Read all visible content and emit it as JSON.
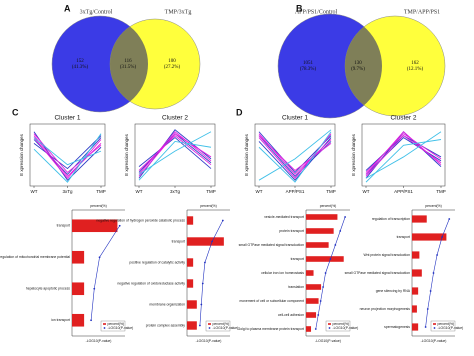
{
  "panel_labels": [
    "A",
    "B",
    "C",
    "D"
  ],
  "chart_data": [
    {
      "type": "venn",
      "sets": [
        {
          "name": "3xTg/Control",
          "color": "#3b3be6"
        },
        {
          "name": "TMP/3xTg",
          "color": "#ffff3c"
        }
      ],
      "values": [
        152,
        116,
        100
      ],
      "percent_labels": [
        "(41.3%)",
        "(31.5%)",
        "(27.2%)"
      ]
    },
    {
      "type": "venn",
      "sets": [
        {
          "name": "APP/PS1/Control",
          "color": "#3b3be6"
        },
        {
          "name": "TMP/APP/PS1",
          "color": "#ffff3c"
        }
      ],
      "values": [
        1051,
        130,
        162
      ],
      "percent_labels": [
        "(78.3%)",
        "(9.7%)",
        "(12.1%)"
      ]
    },
    {
      "type": "line",
      "title": "Cluster 1",
      "ylabel": "E xpression changes",
      "categories": [
        "WT",
        "3xTg",
        "TMP"
      ],
      "ylim": [
        -1.6,
        1.6
      ],
      "series": [
        {
          "color": "#3040c8",
          "values": [
            0.8,
            -1.0,
            0.9
          ]
        },
        {
          "color": "#3040c8",
          "values": [
            1.2,
            -1.3,
            0.4
          ]
        },
        {
          "color": "#3040c8",
          "values": [
            0.6,
            -0.7,
            1.0
          ]
        },
        {
          "color": "#e020e0",
          "values": [
            1.0,
            -1.1,
            0.6
          ]
        },
        {
          "color": "#e020e0",
          "values": [
            0.9,
            -1.2,
            0.8
          ]
        },
        {
          "color": "#e020e0",
          "values": [
            1.1,
            -0.9,
            0.5
          ]
        },
        {
          "color": "#40c0e8",
          "values": [
            0.3,
            -1.4,
            1.1
          ]
        },
        {
          "color": "#40c0e8",
          "values": [
            0.9,
            -0.5,
            0.2
          ]
        }
      ]
    },
    {
      "type": "line",
      "title": "Cluster 2",
      "ylabel": "E xpression changes",
      "categories": [
        "WT",
        "3xTg",
        "TMP"
      ],
      "ylim": [
        -1.6,
        1.6
      ],
      "series": [
        {
          "color": "#3040c8",
          "values": [
            -0.9,
            1.1,
            -0.4
          ]
        },
        {
          "color": "#3040c8",
          "values": [
            -1.2,
            1.3,
            -0.2
          ]
        },
        {
          "color": "#3040c8",
          "values": [
            -0.6,
            0.9,
            -0.7
          ]
        },
        {
          "color": "#e020e0",
          "values": [
            -1.0,
            1.2,
            -0.3
          ]
        },
        {
          "color": "#e020e0",
          "values": [
            -0.8,
            1.0,
            -0.5
          ]
        },
        {
          "color": "#e020e0",
          "values": [
            -1.1,
            1.1,
            -0.1
          ]
        },
        {
          "color": "#40c0e8",
          "values": [
            -1.0,
            0.2,
            1.2
          ]
        },
        {
          "color": "#40c0e8",
          "values": [
            -1.3,
            0.7,
            0.4
          ]
        }
      ]
    },
    {
      "type": "line",
      "title": "Cluster 1",
      "ylabel": "E xpression changes",
      "categories": [
        "WT",
        "APP/PS1",
        "TMP"
      ],
      "ylim": [
        -1.6,
        1.6
      ],
      "series": [
        {
          "color": "#3040c8",
          "values": [
            1.0,
            -1.1,
            0.7
          ]
        },
        {
          "color": "#3040c8",
          "values": [
            1.2,
            -0.9,
            1.0
          ]
        },
        {
          "color": "#3040c8",
          "values": [
            0.7,
            -1.3,
            0.9
          ]
        },
        {
          "color": "#e020e0",
          "values": [
            1.1,
            -1.0,
            0.8
          ]
        },
        {
          "color": "#e020e0",
          "values": [
            0.9,
            -1.2,
            1.1
          ]
        },
        {
          "color": "#e020e0",
          "values": [
            1.0,
            -0.8,
            0.6
          ]
        },
        {
          "color": "#40c0e8",
          "values": [
            -1.3,
            -0.2,
            1.3
          ]
        },
        {
          "color": "#40c0e8",
          "values": [
            0.4,
            -1.4,
            1.2
          ]
        }
      ]
    },
    {
      "type": "line",
      "title": "Cluster 2",
      "ylabel": "E xpression changes",
      "categories": [
        "WT",
        "APP/PS1",
        "TMP"
      ],
      "ylim": [
        -1.6,
        1.6
      ],
      "series": [
        {
          "color": "#3040c8",
          "values": [
            -1.0,
            0.9,
            -0.3
          ]
        },
        {
          "color": "#3040c8",
          "values": [
            -1.2,
            1.2,
            -0.6
          ]
        },
        {
          "color": "#3040c8",
          "values": [
            -0.8,
            1.0,
            -0.1
          ]
        },
        {
          "color": "#e020e0",
          "values": [
            -1.1,
            1.0,
            -0.4
          ]
        },
        {
          "color": "#e020e0",
          "values": [
            -0.9,
            1.1,
            -0.2
          ]
        },
        {
          "color": "#e020e0",
          "values": [
            -1.0,
            1.2,
            -0.5
          ]
        },
        {
          "color": "#40c0e8",
          "values": [
            -1.2,
            -0.1,
            1.2
          ]
        },
        {
          "color": "#40c0e8",
          "values": [
            -1.4,
            0.5,
            0.8
          ]
        }
      ]
    },
    {
      "type": "go-bar",
      "xlabel": "percent(%)",
      "x2label": "-LOG10(P-value)",
      "xlim": [
        0,
        35
      ],
      "x2lim": [
        0,
        5
      ],
      "categories": [
        "transport",
        "negative regulation of mitochondrial membrane potential",
        "hepatocyte apoptotic process",
        "ion transport"
      ],
      "series": [
        {
          "name": "percent(%)",
          "color": "#e02020",
          "values": [
            30,
            8,
            8,
            8
          ]
        },
        {
          "name": "-LOG10(P-value)",
          "color": "#2030c0",
          "axis": "x2",
          "values": [
            4.5,
            2.6,
            2.1,
            1.8
          ]
        }
      ]
    },
    {
      "type": "go-bar",
      "xlabel": "percent(%)",
      "x2label": "-LOG10(P-value)",
      "xlim": [
        0,
        35
      ],
      "x2lim": [
        0,
        6
      ],
      "categories": [
        "negative regulation of hydrogen peroxide catabolic process",
        "transport",
        "positive regulation of catalytic activity",
        "negative regulation of oxidoreductase activity",
        "membrane organization",
        "protein complex assembly"
      ],
      "series": [
        {
          "name": "percent(%)",
          "color": "#e02020",
          "values": [
            5,
            30,
            5,
            5,
            8,
            8
          ]
        },
        {
          "name": "-LOG10(P-value)",
          "color": "#2030c0",
          "axis": "x2",
          "values": [
            5,
            3.5,
            2.5,
            2.2,
            2.0,
            1.8
          ]
        }
      ]
    },
    {
      "type": "go-bar",
      "xlabel": "percent(%)",
      "x2label": "-LOG10(P-value)",
      "xlim": [
        0,
        35
      ],
      "x2lim": [
        0,
        9
      ],
      "categories": [
        "vesicle-mediated transport",
        "protein transport",
        "small GTPase mediated signal transduction",
        "transport",
        "cellular iron ion homeostasis",
        "translation",
        "movement of cell or subcellular component",
        "cell-cell adhesion",
        "Golgi to plasma membrane protein transport"
      ],
      "series": [
        {
          "name": "percent(%)",
          "color": "#e02020",
          "values": [
            25,
            22,
            18,
            30,
            6,
            12,
            10,
            8,
            4
          ]
        },
        {
          "name": "-LOG10(P-value)",
          "color": "#2030c0",
          "axis": "x2",
          "values": [
            8,
            7,
            6,
            5,
            4,
            3.5,
            3,
            2.5,
            2
          ]
        }
      ]
    },
    {
      "type": "go-bar",
      "xlabel": "percent(%)",
      "x2label": "-LOG10(P-value)",
      "xlim": [
        0,
        35
      ],
      "x2lim": [
        0,
        6
      ],
      "categories": [
        "regulation of transcription",
        "transport",
        "Wnt protein signal transduction",
        "small GTPase mediated signal transduction",
        "gene silencing by RNA",
        "neuron projection morphogenesis",
        "spermatogenesis"
      ],
      "series": [
        {
          "name": "percent(%)",
          "color": "#e02020",
          "values": [
            12,
            28,
            6,
            8,
            5,
            4,
            5
          ]
        },
        {
          "name": "-LOG10(P-value)",
          "color": "#2030c0",
          "axis": "x2",
          "values": [
            5.2,
            4.2,
            3.5,
            3.0,
            2.6,
            2.2,
            1.9
          ]
        }
      ]
    }
  ]
}
